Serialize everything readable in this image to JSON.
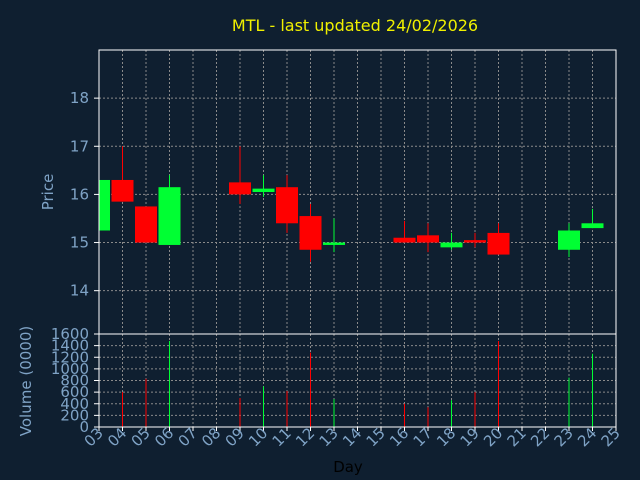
{
  "chart_data": {
    "type": "candlestick",
    "title": "MTL - last updated 24/02/2026",
    "xlabel": "Day",
    "days": [
      "03",
      "04",
      "05",
      "06",
      "07",
      "08",
      "09",
      "10",
      "11",
      "12",
      "13",
      "14",
      "15",
      "16",
      "17",
      "18",
      "19",
      "20",
      "21",
      "22",
      "23",
      "24",
      "25"
    ],
    "price_panel": {
      "ylabel": "Price",
      "ylim": [
        13.1,
        19.0
      ],
      "yticks": [
        14,
        15,
        16,
        17,
        18
      ],
      "candles": [
        {
          "day": "03",
          "open": 15.25,
          "close": 16.3,
          "high": 16.3,
          "low": 15.25
        },
        {
          "day": "04",
          "open": 16.3,
          "close": 15.85,
          "high": 17.0,
          "low": 15.85
        },
        {
          "day": "05",
          "open": 15.75,
          "close": 15.0,
          "high": 15.75,
          "low": 15.0
        },
        {
          "day": "06",
          "open": 14.95,
          "close": 16.15,
          "high": 16.4,
          "low": 14.95
        },
        {
          "day": "09",
          "open": 16.25,
          "close": 16.0,
          "high": 17.0,
          "low": 15.8
        },
        {
          "day": "10",
          "open": 16.05,
          "close": 16.12,
          "high": 16.4,
          "low": 15.95
        },
        {
          "day": "11",
          "open": 16.15,
          "close": 15.4,
          "high": 16.4,
          "low": 15.2
        },
        {
          "day": "12",
          "open": 15.55,
          "close": 14.85,
          "high": 15.8,
          "low": 14.6
        },
        {
          "day": "13",
          "open": 14.95,
          "close": 15.0,
          "high": 15.5,
          "low": 14.8
        },
        {
          "day": "16",
          "open": 15.1,
          "close": 15.0,
          "high": 15.45,
          "low": 15.0
        },
        {
          "day": "17",
          "open": 15.15,
          "close": 15.0,
          "high": 15.4,
          "low": 14.8
        },
        {
          "day": "18",
          "open": 14.9,
          "close": 15.0,
          "high": 15.2,
          "low": 14.85
        },
        {
          "day": "19",
          "open": 15.05,
          "close": 15.0,
          "high": 15.2,
          "low": 14.9
        },
        {
          "day": "20",
          "open": 15.2,
          "close": 14.75,
          "high": 15.4,
          "low": 14.75
        },
        {
          "day": "23",
          "open": 14.85,
          "close": 15.25,
          "high": 15.4,
          "low": 14.7
        },
        {
          "day": "24",
          "open": 15.3,
          "close": 15.4,
          "high": 15.7,
          "low": 15.3
        }
      ]
    },
    "volume_panel": {
      "ylabel": "Volume (0000)",
      "ylim": [
        0,
        1600
      ],
      "yticks": [
        0,
        200,
        400,
        600,
        800,
        1000,
        1200,
        1400,
        1600
      ],
      "bars": [
        {
          "day": "04",
          "value": 600,
          "direction": "down"
        },
        {
          "day": "05",
          "value": 830,
          "direction": "down"
        },
        {
          "day": "06",
          "value": 1480,
          "direction": "up"
        },
        {
          "day": "09",
          "value": 500,
          "direction": "down"
        },
        {
          "day": "10",
          "value": 700,
          "direction": "up"
        },
        {
          "day": "11",
          "value": 620,
          "direction": "down"
        },
        {
          "day": "12",
          "value": 1280,
          "direction": "down"
        },
        {
          "day": "13",
          "value": 480,
          "direction": "up"
        },
        {
          "day": "16",
          "value": 400,
          "direction": "down"
        },
        {
          "day": "17",
          "value": 340,
          "direction": "down"
        },
        {
          "day": "18",
          "value": 460,
          "direction": "up"
        },
        {
          "day": "19",
          "value": 600,
          "direction": "down"
        },
        {
          "day": "20",
          "value": 1480,
          "direction": "down"
        },
        {
          "day": "23",
          "value": 850,
          "direction": "up"
        },
        {
          "day": "24",
          "value": 1260,
          "direction": "up"
        }
      ]
    },
    "grid": true,
    "colors": {
      "background": "#0f1f30",
      "plot_area": "#0f1f30",
      "title": "#f0f000",
      "axis_text": "#7fa3c6",
      "grid": "#8a8a8a",
      "frame": "#ffffff",
      "up": "#00ff33",
      "down": "#ff0000"
    }
  }
}
